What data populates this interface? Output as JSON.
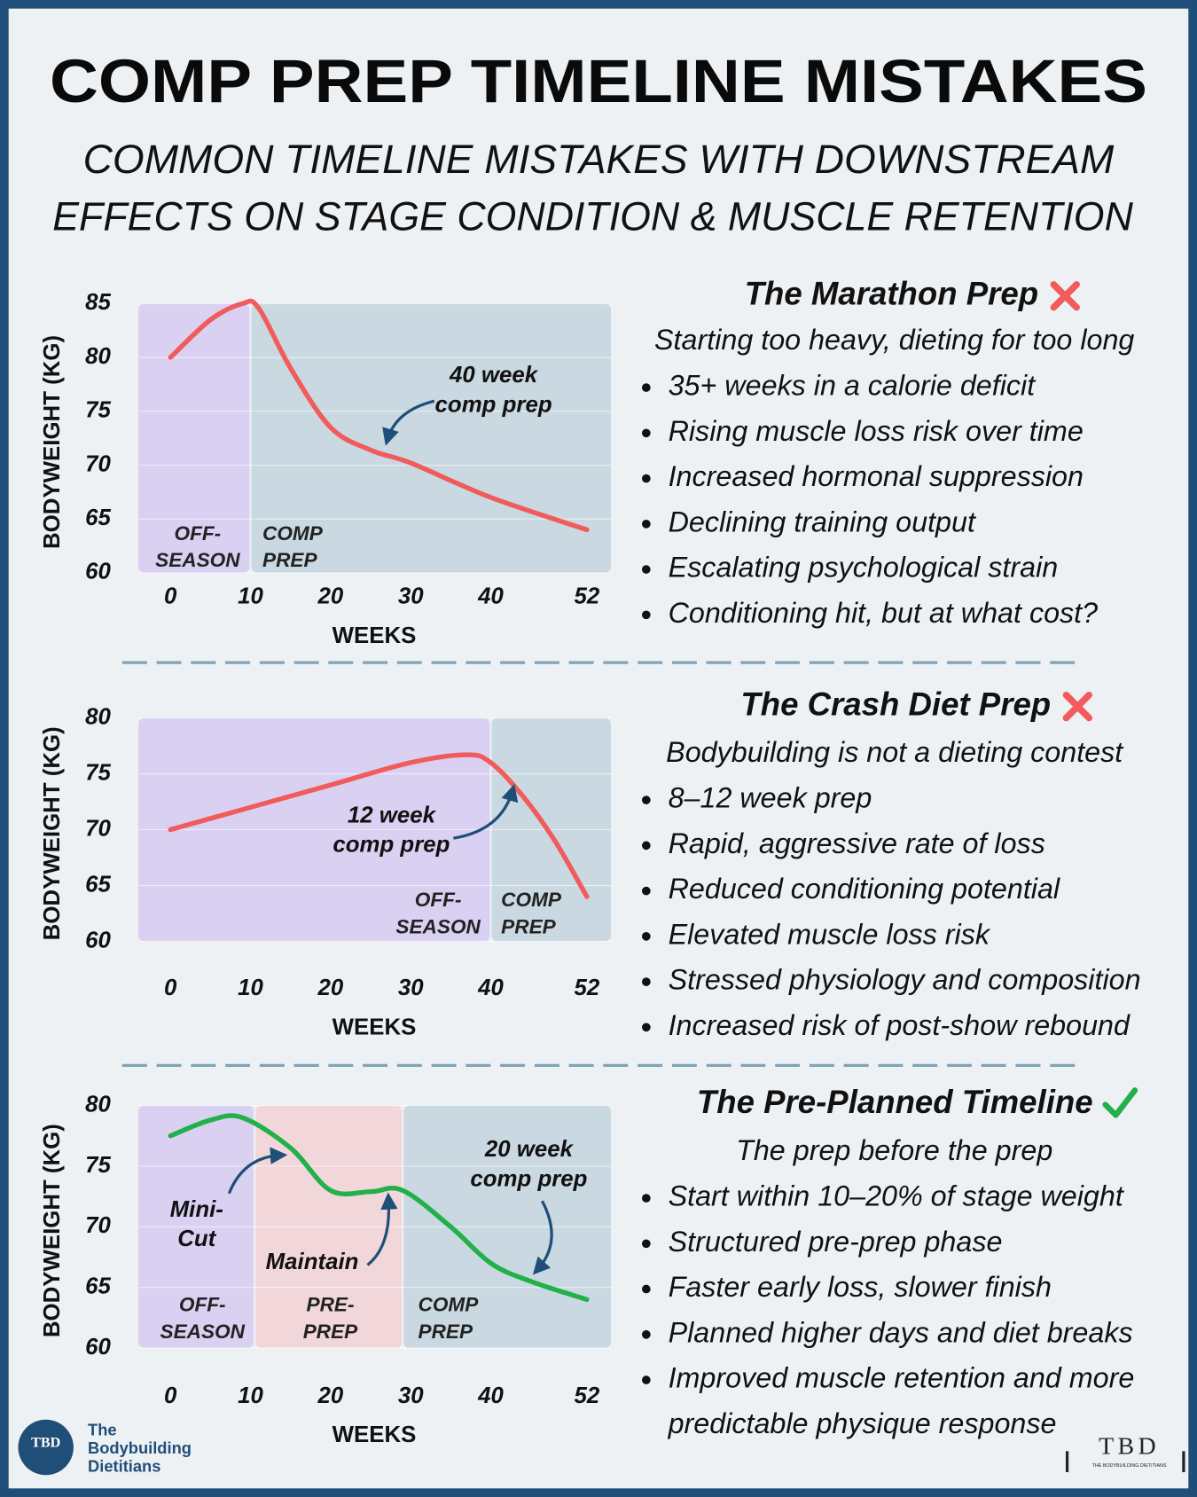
{
  "header": {
    "title": "COMP PREP TIMELINE MISTAKES",
    "subtitle": [
      "COMMON TIMELINE MISTAKES WITH DOWNSTREAM",
      "EFFECTS ON STAGE CONDITION & MUSCLE RETENTION"
    ]
  },
  "chart_data": [
    {
      "type": "line",
      "x_label": "WEEKS",
      "y_label": "BODYWEIGHT (KG)",
      "xlim": [
        -4,
        55
      ],
      "ylim": [
        60,
        85
      ],
      "xticks": [
        0,
        10,
        20,
        30,
        40,
        52
      ],
      "yticks": [
        60,
        65,
        70,
        75,
        80,
        85
      ],
      "grid": true,
      "phase_breaks": [
        10
      ],
      "phases": [
        {
          "label": [
            "OFF-",
            "SEASON"
          ],
          "color": "#d9d0f2"
        },
        {
          "label": [
            "COMP",
            "PREP"
          ],
          "color": "#c9d8e1"
        }
      ],
      "x": [
        0,
        5,
        9,
        11,
        15,
        20,
        25,
        30,
        40,
        52
      ],
      "values": [
        80,
        83.5,
        85,
        84.6,
        79,
        73.5,
        71.4,
        70.2,
        67,
        64
      ],
      "color": "#f15b5b",
      "annotations": [
        {
          "text": [
            "40 week",
            "comp prep"
          ]
        }
      ]
    },
    {
      "type": "line",
      "x_label": "WEEKS",
      "y_label": "BODYWEIGHT (KG)",
      "xlim": [
        -4,
        55
      ],
      "ylim": [
        60,
        80
      ],
      "xticks": [
        0,
        10,
        20,
        30,
        40,
        52
      ],
      "yticks": [
        60,
        65,
        70,
        75,
        80
      ],
      "grid": true,
      "phase_breaks": [
        40
      ],
      "phases": [
        {
          "label": [
            "OFF-",
            "SEASON"
          ],
          "color": "#d9d0f2"
        },
        {
          "label": [
            "COMP",
            "PREP"
          ],
          "color": "#c9d8e1"
        }
      ],
      "x": [
        0,
        10,
        20,
        30,
        37,
        40,
        44,
        48,
        52
      ],
      "values": [
        70,
        72,
        74,
        76,
        76.7,
        76,
        73,
        69,
        64
      ],
      "color": "#f15b5b",
      "annotations": [
        {
          "text": [
            "12 week",
            "comp prep"
          ]
        }
      ]
    },
    {
      "type": "line",
      "x_label": "WEEKS",
      "y_label": "BODYWEIGHT (KG)",
      "xlim": [
        -4,
        55
      ],
      "ylim": [
        60,
        80
      ],
      "xticks": [
        0,
        10,
        20,
        30,
        40,
        52
      ],
      "yticks": [
        60,
        65,
        70,
        75,
        80
      ],
      "grid": true,
      "phase_breaks": [
        10.5,
        29
      ],
      "phases": [
        {
          "label": [
            "OFF-",
            "SEASON"
          ],
          "color": "#d9d0f2"
        },
        {
          "label": [
            "PRE-",
            "PREP"
          ],
          "color": "#f2d7da"
        },
        {
          "label": [
            "COMP",
            "PREP"
          ],
          "color": "#c9d8e1"
        }
      ],
      "x": [
        0,
        5,
        9,
        15,
        20,
        25,
        29,
        35,
        40,
        45,
        52
      ],
      "values": [
        77.5,
        78.8,
        79,
        76.5,
        73,
        72.9,
        73,
        70,
        67,
        65.5,
        64
      ],
      "color": "#22b04b",
      "annotations": [
        {
          "text": [
            "Mini-",
            "Cut"
          ]
        },
        {
          "text": [
            "Maintain"
          ]
        },
        {
          "text": [
            "20 week",
            "comp prep"
          ]
        }
      ]
    }
  ],
  "panels": [
    {
      "heading": "The Marathon Prep",
      "verdict": "bad",
      "tagline": "Starting too heavy, dieting for too long",
      "bullets": [
        [
          "35+ weeks in a calorie deficit"
        ],
        [
          "Rising muscle loss risk over time"
        ],
        [
          "Increased hormonal suppression"
        ],
        [
          "Declining training output"
        ],
        [
          "Escalating psychological strain"
        ],
        [
          "Conditioning hit, but at what cost?"
        ]
      ]
    },
    {
      "heading": "The Crash Diet Prep",
      "verdict": "bad",
      "tagline": "Bodybuilding is not a dieting contest",
      "bullets": [
        [
          "8–12 week prep"
        ],
        [
          "Rapid, aggressive rate of loss"
        ],
        [
          "Reduced conditioning potential"
        ],
        [
          "Elevated muscle loss risk"
        ],
        [
          "Stressed physiology and composition"
        ],
        [
          "Increased risk of post-show rebound"
        ]
      ]
    },
    {
      "heading": "The Pre-Planned Timeline",
      "verdict": "good",
      "tagline": "The prep before the prep",
      "bullets": [
        [
          "Start within 10–20% of stage weight"
        ],
        [
          "Structured pre-prep phase"
        ],
        [
          "Faster early loss, slower finish"
        ],
        [
          "Planned higher days and diet breaks"
        ],
        [
          "Improved muscle retention and more",
          "predictable physique response"
        ]
      ]
    }
  ],
  "footer": {
    "logo": "TBD",
    "brand": [
      "The",
      "Bodybuilding",
      "Dietitians"
    ],
    "mark": "TBD",
    "mark_caption": "THE BODYBUILDING DIETITIANS"
  }
}
